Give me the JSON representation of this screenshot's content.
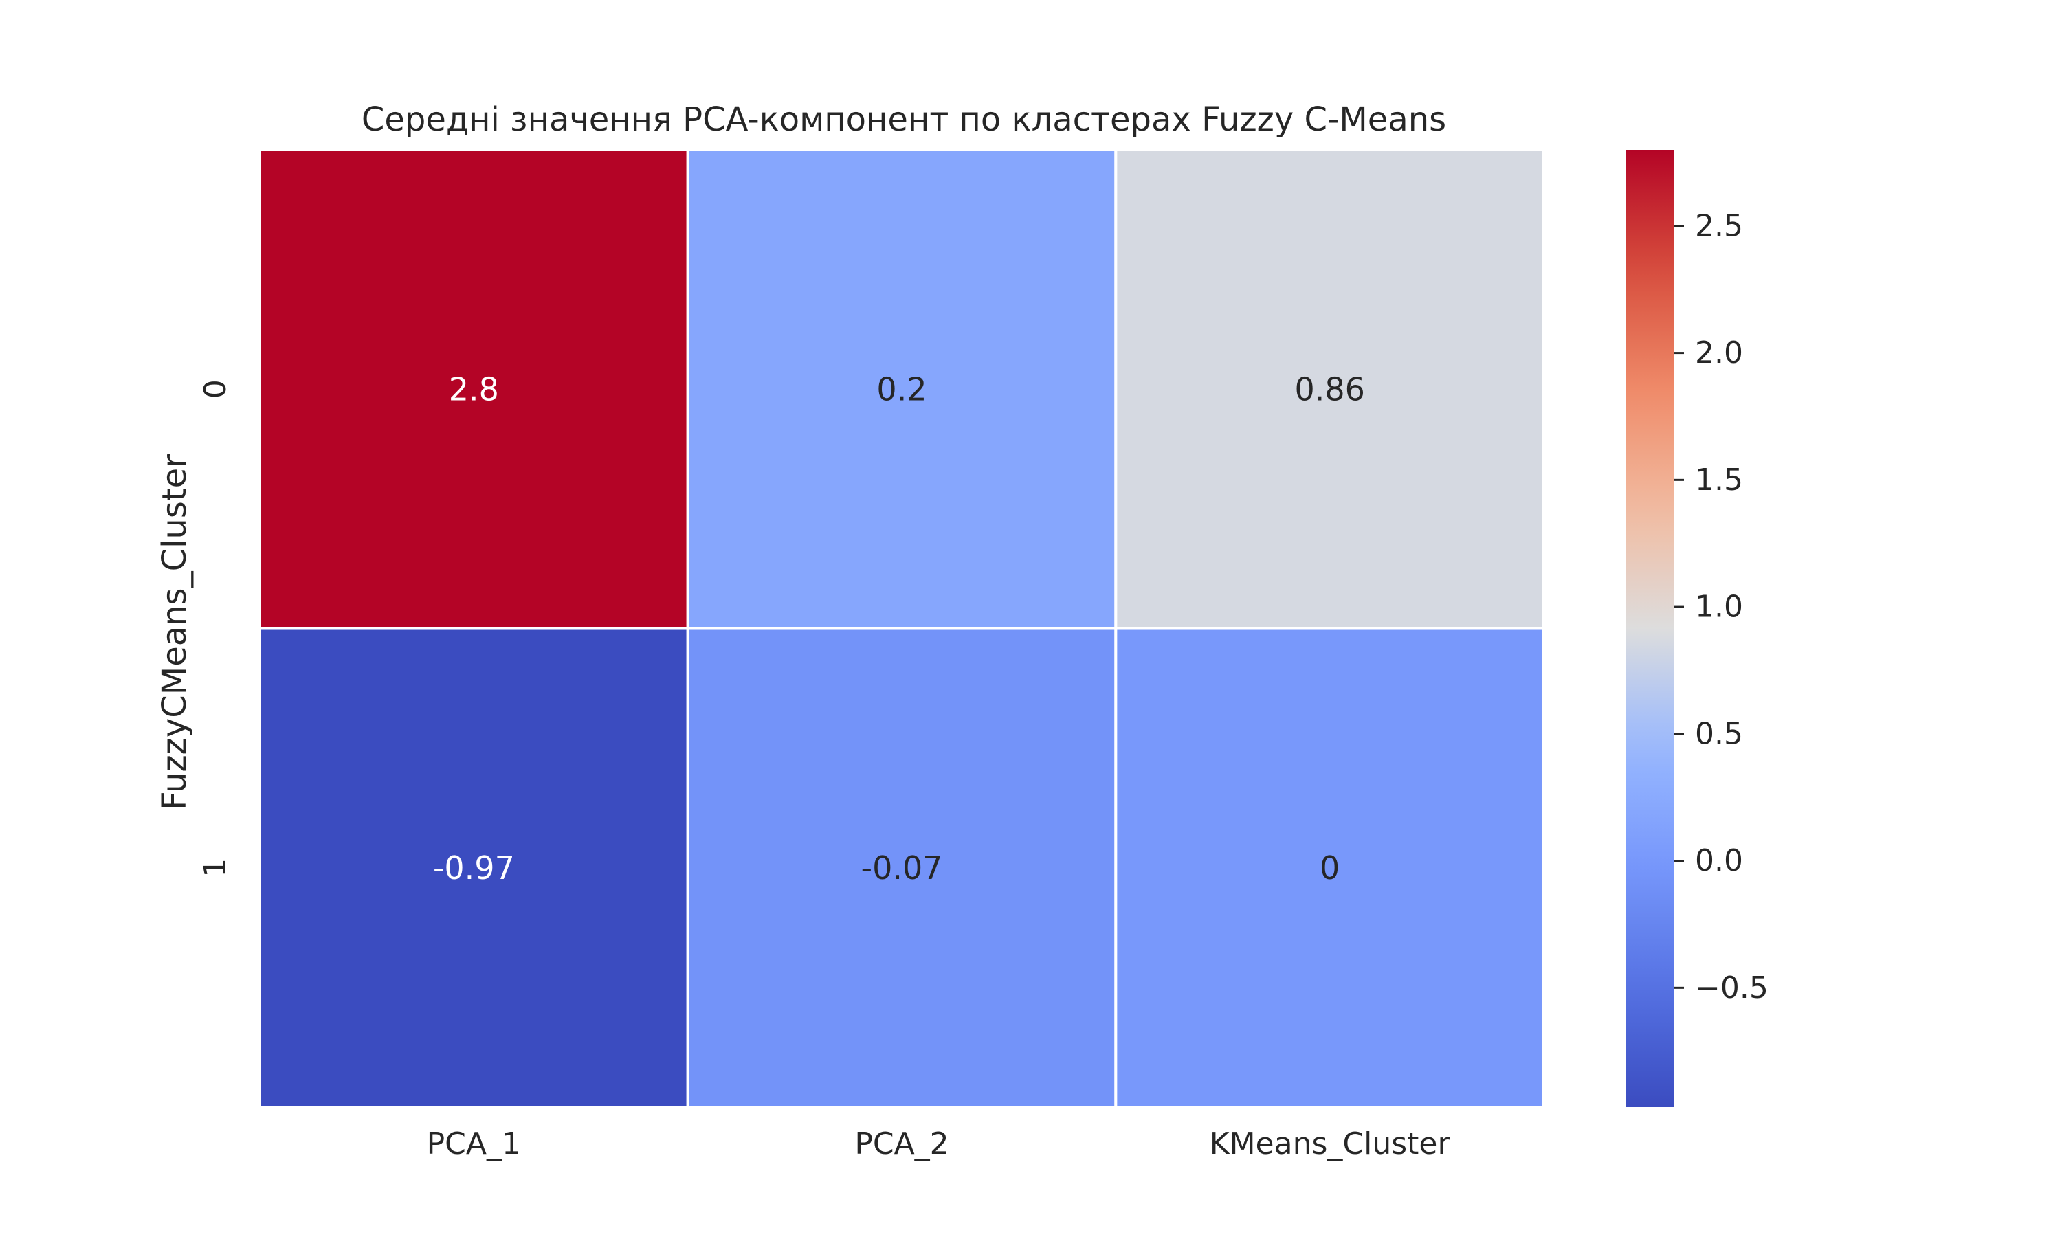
{
  "chart_data": {
    "type": "heatmap",
    "title": "Середні значення PCA-компонент по кластерах Fuzzy C-Means",
    "xlabel": "",
    "ylabel": "FuzzyCMeans_Cluster",
    "x_categories": [
      "PCA_1",
      "PCA_2",
      "KMeans_Cluster"
    ],
    "y_categories": [
      "0",
      "1"
    ],
    "values": [
      [
        2.8,
        0.2,
        0.86
      ],
      [
        -0.97,
        -0.07,
        0
      ]
    ],
    "cell_labels": [
      [
        "2.8",
        "0.2",
        "0.86"
      ],
      [
        "-0.97",
        "-0.07",
        "0"
      ]
    ],
    "colormap": "coolwarm",
    "vmin": -0.97,
    "vmax": 2.8,
    "colorbar_ticks": [
      2.5,
      2.0,
      1.5,
      1.0,
      0.5,
      0.0,
      -0.5
    ],
    "colorbar_tick_labels": [
      "2.5",
      "2.0",
      "1.5",
      "1.0",
      "0.5",
      "0.0",
      "−0.5"
    ],
    "grid": false,
    "colors": {
      "cell_border": "#ffffff",
      "text_light": "#ffffff",
      "text_dark": "#262626"
    }
  }
}
